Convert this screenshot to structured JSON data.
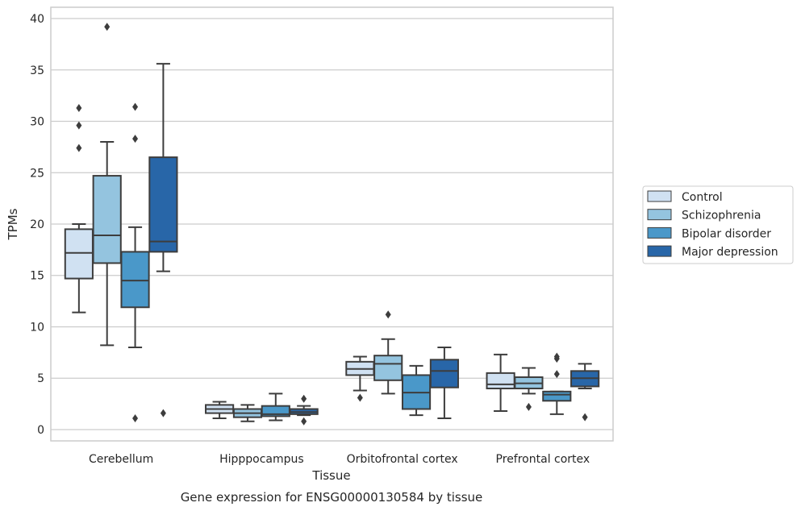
{
  "chart_data": {
    "type": "box",
    "caption": "Gene expression for ENSG00000130584 by tissue",
    "xlabel": "Tissue",
    "ylabel": "TPMs",
    "ylim": [
      -1.1,
      41.1
    ],
    "yticks": [
      0,
      5,
      10,
      15,
      20,
      25,
      30,
      35,
      40
    ],
    "grid": true,
    "legend_position": "right",
    "categories": [
      "Cerebellum",
      "Hipppocampus",
      "Orbitofrontal cortex",
      "Prefrontal cortex"
    ],
    "series": [
      {
        "name": "Control",
        "color": "#d0e1f2",
        "boxes": [
          {
            "whisker_low": 11.4,
            "q1": 14.7,
            "median": 17.2,
            "q3": 19.5,
            "whisker_high": 20.0,
            "outliers": [
              27.4,
              29.6,
              31.3
            ]
          },
          {
            "whisker_low": 1.1,
            "q1": 1.6,
            "median": 2.0,
            "q3": 2.4,
            "whisker_high": 2.7,
            "outliers": []
          },
          {
            "whisker_low": 3.8,
            "q1": 5.3,
            "median": 5.9,
            "q3": 6.6,
            "whisker_high": 7.1,
            "outliers": [
              3.1
            ]
          },
          {
            "whisker_low": 1.8,
            "q1": 4.0,
            "median": 4.4,
            "q3": 5.5,
            "whisker_high": 7.3,
            "outliers": []
          }
        ]
      },
      {
        "name": "Schizophrenia",
        "color": "#94c4df",
        "boxes": [
          {
            "whisker_low": 8.2,
            "q1": 16.2,
            "median": 18.9,
            "q3": 24.7,
            "whisker_high": 28.0,
            "outliers": [
              39.2
            ]
          },
          {
            "whisker_low": 0.8,
            "q1": 1.2,
            "median": 1.6,
            "q3": 2.0,
            "whisker_high": 2.4,
            "outliers": []
          },
          {
            "whisker_low": 3.5,
            "q1": 4.8,
            "median": 6.4,
            "q3": 7.2,
            "whisker_high": 8.8,
            "outliers": [
              11.2
            ]
          },
          {
            "whisker_low": 3.5,
            "q1": 4.0,
            "median": 4.5,
            "q3": 5.1,
            "whisker_high": 6.0,
            "outliers": [
              2.2
            ]
          }
        ]
      },
      {
        "name": "Bipolar disorder",
        "color": "#4a98c9",
        "boxes": [
          {
            "whisker_low": 8.0,
            "q1": 11.9,
            "median": 14.5,
            "q3": 17.3,
            "whisker_high": 19.7,
            "outliers": [
              1.1,
              28.3,
              31.4
            ]
          },
          {
            "whisker_low": 0.9,
            "q1": 1.3,
            "median": 1.5,
            "q3": 2.3,
            "whisker_high": 3.5,
            "outliers": []
          },
          {
            "whisker_low": 1.4,
            "q1": 2.0,
            "median": 3.6,
            "q3": 5.3,
            "whisker_high": 6.2,
            "outliers": []
          },
          {
            "whisker_low": 1.5,
            "q1": 2.8,
            "median": 3.4,
            "q3": 3.7,
            "whisker_high": 3.7,
            "outliers": [
              5.4,
              6.9,
              7.1
            ]
          }
        ]
      },
      {
        "name": "Major depression",
        "color": "#2866a8",
        "boxes": [
          {
            "whisker_low": 15.4,
            "q1": 17.3,
            "median": 18.3,
            "q3": 26.5,
            "whisker_high": 35.6,
            "outliers": [
              1.6
            ]
          },
          {
            "whisker_low": 1.4,
            "q1": 1.5,
            "median": 1.7,
            "q3": 2.0,
            "whisker_high": 2.3,
            "outliers": [
              0.8,
              3.0
            ]
          },
          {
            "whisker_low": 1.1,
            "q1": 4.1,
            "median": 5.7,
            "q3": 6.8,
            "whisker_high": 8.0,
            "outliers": []
          },
          {
            "whisker_low": 4.0,
            "q1": 4.2,
            "median": 5.0,
            "q3": 5.7,
            "whisker_high": 6.4,
            "outliers": [
              1.2
            ]
          }
        ]
      }
    ]
  }
}
